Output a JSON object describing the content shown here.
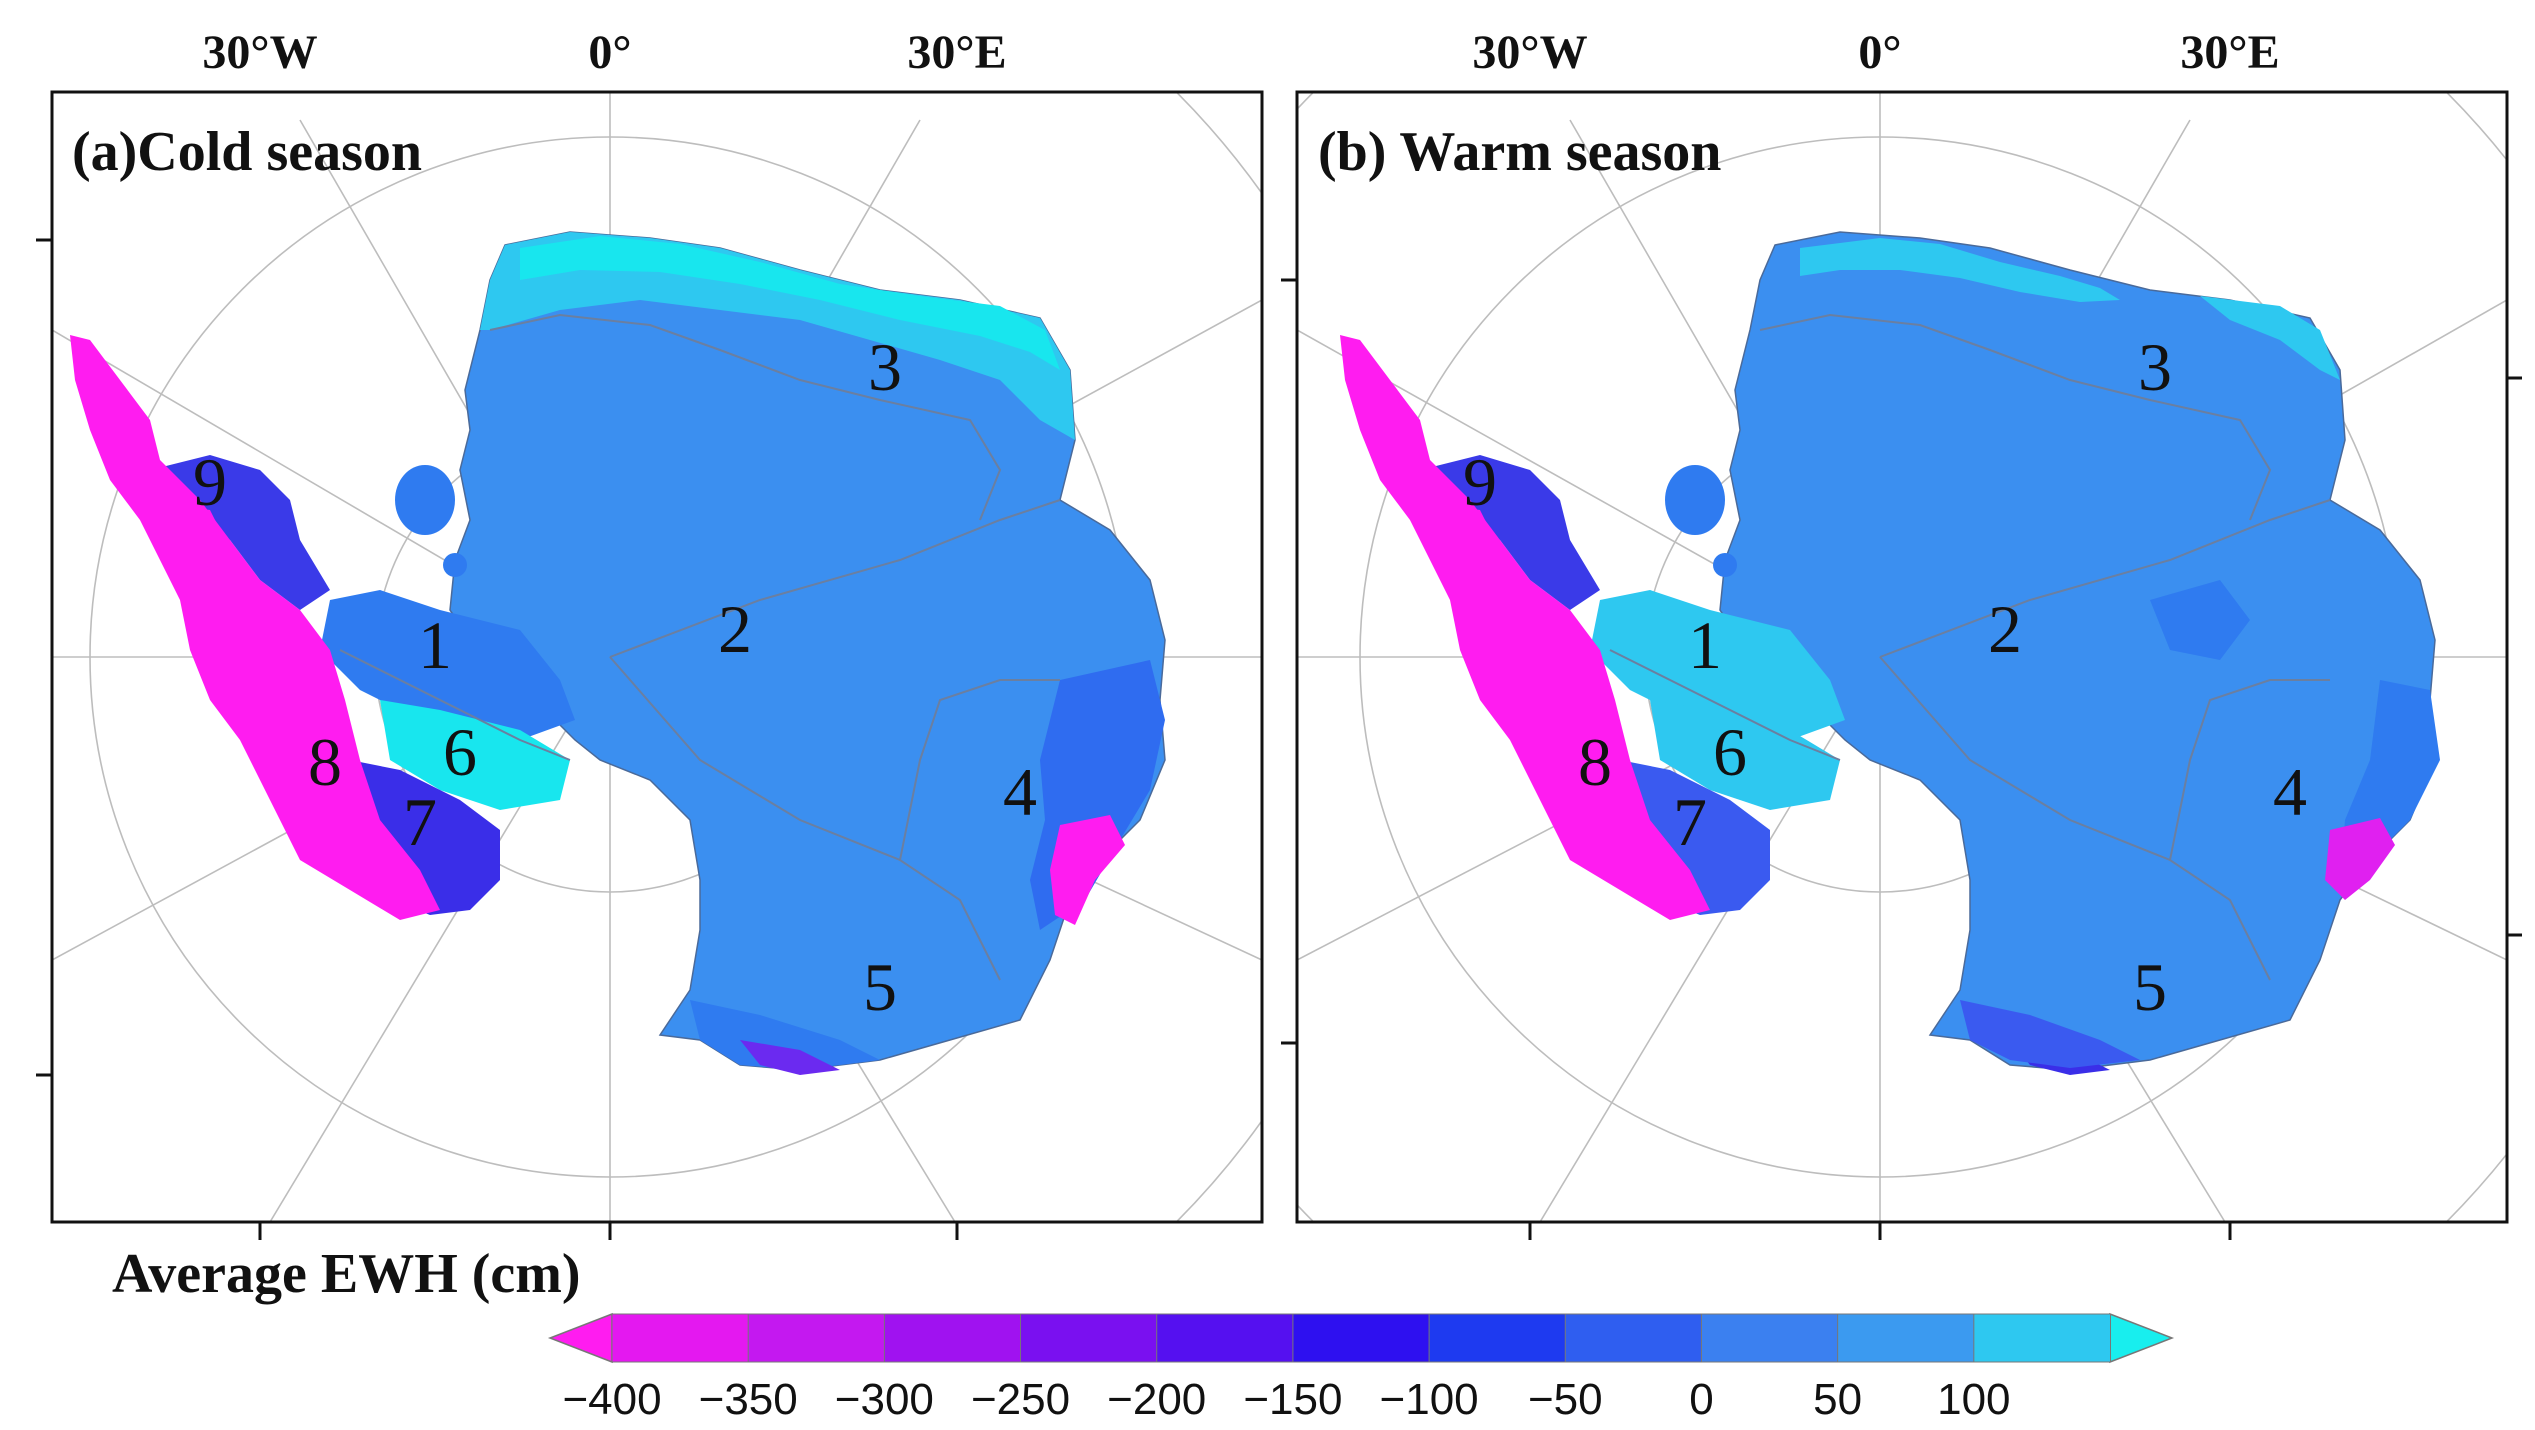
{
  "figure": {
    "panels": [
      {
        "id": "a",
        "title": "(a)Cold season",
        "lon_labels": [
          "30°W",
          "0°",
          "30°E"
        ],
        "regions": [
          "1",
          "2",
          "3",
          "4",
          "5",
          "6",
          "7",
          "8",
          "9"
        ],
        "region_colors": {
          "1": "#2f7bf0",
          "2": "#3b8ff0",
          "3": "#2ec8f0",
          "4": "#2f6cf0",
          "5": "#3b8ff0",
          "6": "#18e6ee",
          "7": "#3a2ee8",
          "8": "#ff1cf0",
          "9": "#3a3ae8"
        },
        "highlights": {
          "east_cyan": "#18e6ee",
          "region4_core": "#ff1cf0",
          "region5_edge": "#6b2af0"
        }
      },
      {
        "id": "b",
        "title": "(b) Warm season",
        "lon_labels": [
          "30°W",
          "0°",
          "30°E"
        ],
        "regions": [
          "1",
          "2",
          "3",
          "4",
          "5",
          "6",
          "7",
          "8",
          "9"
        ],
        "region_colors": {
          "1": "#2ec8f0",
          "2": "#3b8ff0",
          "3": "#3b8ff0",
          "4": "#3b8ff0",
          "5": "#3b8ff0",
          "6": "#2ec8f0",
          "7": "#3a5af0",
          "8": "#ff1cf0",
          "9": "#3a3ae8"
        },
        "highlights": {
          "east_cyan": "#2ec8f0",
          "region4_core": "#e020f0",
          "region5_edge": "#3a2ee8"
        }
      }
    ]
  },
  "colorbar": {
    "title": "Average EWH (cm)",
    "tick_labels": [
      "−400",
      "−350",
      "−300",
      "−250",
      "−200",
      "−150",
      "−100",
      "−50",
      "0",
      "50",
      "100"
    ],
    "colors": [
      "#ff1cf0",
      "#e418f0",
      "#c418f0",
      "#a012f0",
      "#7a10f0",
      "#5510f0",
      "#2e10f0",
      "#1e3af0",
      "#2f5ef0",
      "#3b80f0",
      "#3b9af0",
      "#2ec8f0",
      "#18eeee"
    ]
  }
}
